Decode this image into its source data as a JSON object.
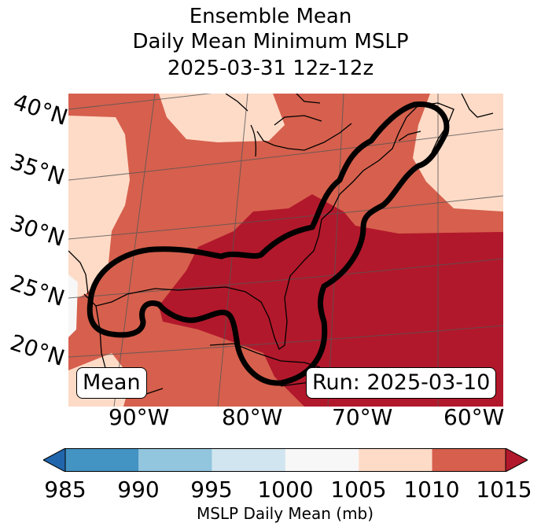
{
  "title": {
    "line1": "Ensemble Mean",
    "line2": "Daily Mean Minimum MSLP",
    "line3": "2025-03-31 12z-12z"
  },
  "map": {
    "lat_labels": [
      "40°N",
      "35°N",
      "30°N",
      "25°N",
      "20°N"
    ],
    "lon_labels": [
      "90°W",
      "80°W",
      "70°W",
      "60°W"
    ],
    "mean_label": "Mean",
    "run_label": "Run: 2025-03-10",
    "colors": {
      "below_985": "#2166ac",
      "985_990": "#4393c3",
      "990_995": "#92c5de",
      "995_1000": "#d1e5f0",
      "1000_1005": "#f7f7f7",
      "1005_1010": "#fddbc7",
      "1010_1015": "#d6604d",
      "above_1015": "#b2182b",
      "contour": "#000000"
    }
  },
  "colorbar": {
    "ticks": [
      "985",
      "990",
      "995",
      "1000",
      "1005",
      "1010",
      "1015"
    ],
    "label": "MSLP Daily Mean (mb)"
  }
}
